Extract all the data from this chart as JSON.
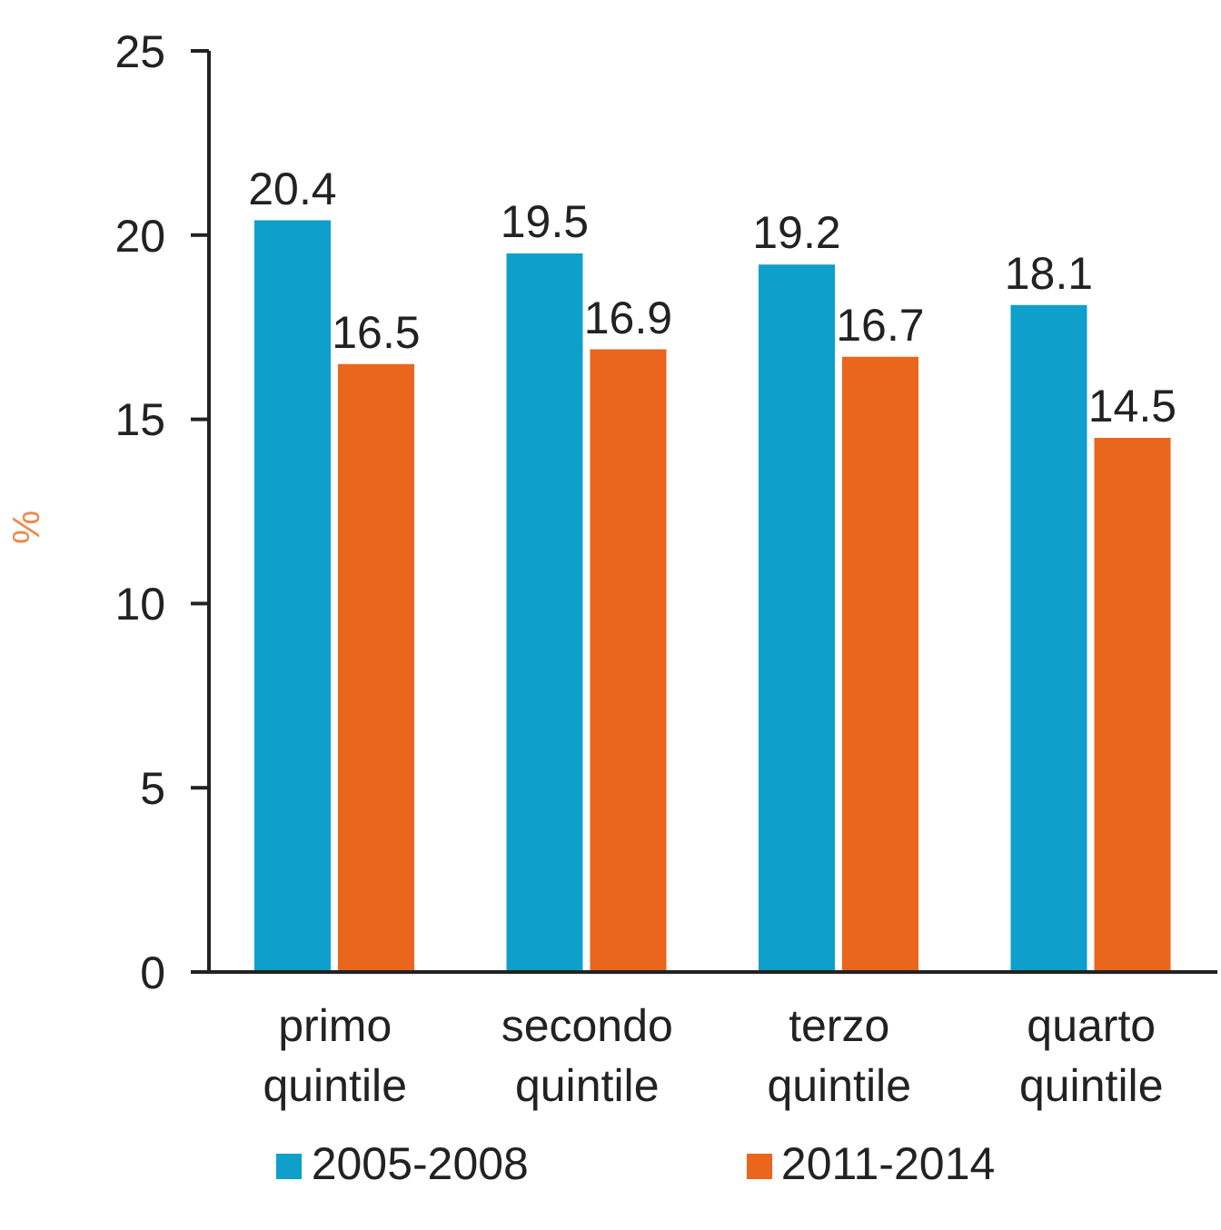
{
  "chart_data": {
    "type": "bar",
    "ylabel": "%",
    "categories": [
      "primo quintile",
      "secondo quintile",
      "terzo quintile",
      "quarto quintile"
    ],
    "series": [
      {
        "name": "2005-2008",
        "color": "#0e9fca",
        "values": [
          20.4,
          19.5,
          19.2,
          18.1
        ]
      },
      {
        "name": "2011-2014",
        "color": "#e9661c",
        "values": [
          16.5,
          16.9,
          16.7,
          14.5
        ]
      }
    ],
    "ylim": [
      0,
      25
    ],
    "yticks": [
      0,
      5,
      10,
      15,
      20,
      25
    ],
    "data_labels": true,
    "legend": "bottom",
    "grid": false
  }
}
